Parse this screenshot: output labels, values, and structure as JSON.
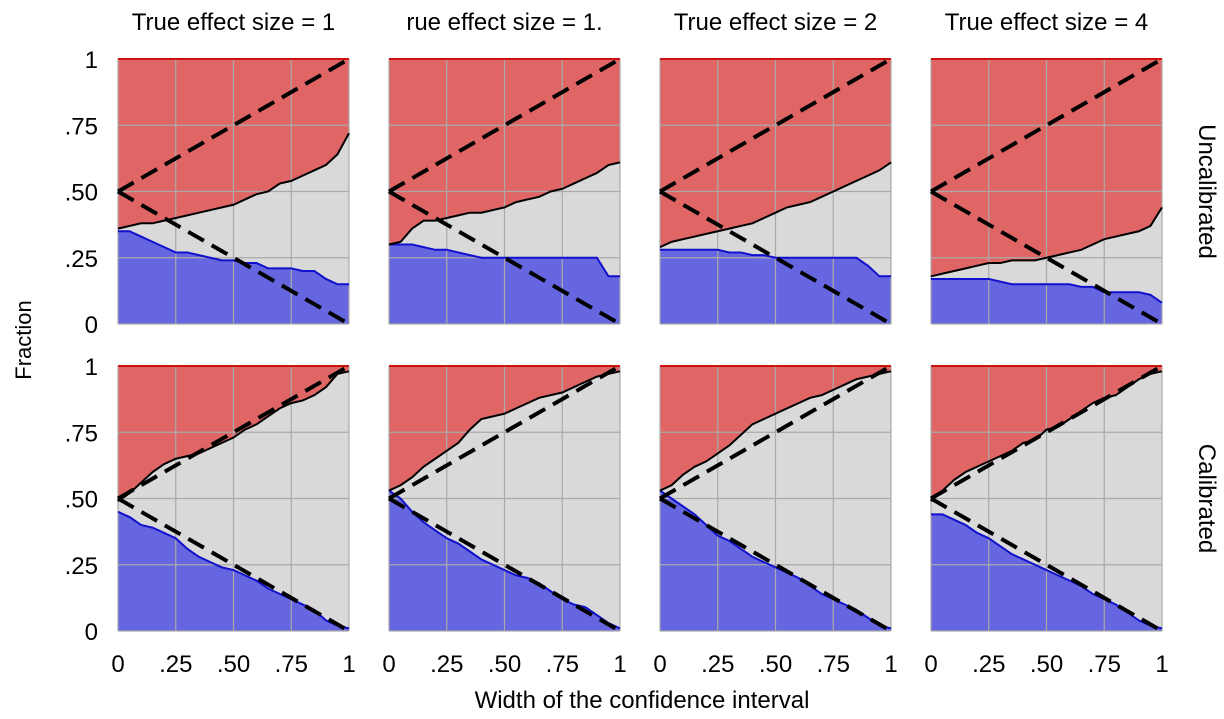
{
  "chart_data": {
    "type": "area",
    "ylabel": "Fraction",
    "xlabel": "Width of the confidence interval",
    "xlim": [
      0,
      1
    ],
    "ylim": [
      0,
      1
    ],
    "x_ticks": [
      "0",
      ".25",
      ".50",
      ".75",
      "1"
    ],
    "x_tick_values": [
      0,
      0.25,
      0.5,
      0.75,
      1
    ],
    "y_ticks": [
      "0",
      ".25",
      ".50",
      ".75",
      "1"
    ],
    "y_tick_values": [
      0,
      0.25,
      0.5,
      0.75,
      1
    ],
    "grid": true,
    "column_titles": [
      "True effect size = 1",
      "rue effect size = 1.",
      "True effect size = 2",
      "True effect size = 4"
    ],
    "row_labels": [
      "Uncalibrated",
      "Calibrated"
    ],
    "colors": {
      "top_fill": "#e06666",
      "top_line": "#cc1111",
      "middle_fill": "#d9d9d9",
      "bottom_fill": "#6666e0",
      "bottom_line": "#1111cc",
      "upper_curve": "#000000",
      "reference_dashed": "#000000",
      "grid": "#aaaaaa"
    },
    "reference_lines": [
      {
        "name": "upper",
        "x": [
          0,
          1
        ],
        "y": [
          0.5,
          1
        ]
      },
      {
        "name": "lower",
        "x": [
          0,
          1
        ],
        "y": [
          0.5,
          0
        ]
      }
    ],
    "panels": [
      {
        "row": "Uncalibrated",
        "column": "True effect size = 1",
        "lower_curve": {
          "x": [
            0,
            0.05,
            0.1,
            0.15,
            0.2,
            0.25,
            0.3,
            0.35,
            0.4,
            0.45,
            0.5,
            0.55,
            0.6,
            0.65,
            0.7,
            0.75,
            0.8,
            0.85,
            0.9,
            0.95,
            1
          ],
          "y": [
            0.35,
            0.35,
            0.33,
            0.31,
            0.29,
            0.27,
            0.27,
            0.26,
            0.25,
            0.24,
            0.24,
            0.23,
            0.23,
            0.21,
            0.21,
            0.21,
            0.2,
            0.2,
            0.17,
            0.15,
            0.15
          ]
        },
        "upper_curve": {
          "x": [
            0,
            0.05,
            0.1,
            0.15,
            0.2,
            0.25,
            0.3,
            0.35,
            0.4,
            0.45,
            0.5,
            0.55,
            0.6,
            0.65,
            0.7,
            0.75,
            0.8,
            0.85,
            0.9,
            0.95,
            1
          ],
          "y": [
            0.36,
            0.37,
            0.38,
            0.38,
            0.39,
            0.4,
            0.41,
            0.42,
            0.43,
            0.44,
            0.45,
            0.47,
            0.49,
            0.5,
            0.53,
            0.54,
            0.56,
            0.58,
            0.6,
            0.64,
            0.72
          ]
        }
      },
      {
        "row": "Uncalibrated",
        "column": "rue effect size = 1.",
        "lower_curve": {
          "x": [
            0,
            0.05,
            0.1,
            0.15,
            0.2,
            0.25,
            0.3,
            0.35,
            0.4,
            0.45,
            0.5,
            0.55,
            0.6,
            0.65,
            0.7,
            0.75,
            0.8,
            0.85,
            0.9,
            0.95,
            1
          ],
          "y": [
            0.3,
            0.3,
            0.3,
            0.29,
            0.28,
            0.28,
            0.27,
            0.26,
            0.25,
            0.25,
            0.25,
            0.25,
            0.25,
            0.25,
            0.25,
            0.25,
            0.25,
            0.25,
            0.25,
            0.18,
            0.18
          ]
        },
        "upper_curve": {
          "x": [
            0,
            0.05,
            0.1,
            0.15,
            0.2,
            0.25,
            0.3,
            0.35,
            0.4,
            0.45,
            0.5,
            0.55,
            0.6,
            0.65,
            0.7,
            0.75,
            0.8,
            0.85,
            0.9,
            0.95,
            1
          ],
          "y": [
            0.3,
            0.31,
            0.36,
            0.39,
            0.39,
            0.4,
            0.41,
            0.42,
            0.42,
            0.43,
            0.44,
            0.46,
            0.47,
            0.48,
            0.5,
            0.51,
            0.53,
            0.55,
            0.57,
            0.6,
            0.61
          ]
        }
      },
      {
        "row": "Uncalibrated",
        "column": "True effect size = 2",
        "lower_curve": {
          "x": [
            0,
            0.05,
            0.1,
            0.15,
            0.2,
            0.25,
            0.3,
            0.35,
            0.4,
            0.45,
            0.5,
            0.55,
            0.6,
            0.65,
            0.7,
            0.75,
            0.8,
            0.85,
            0.9,
            0.95,
            1
          ],
          "y": [
            0.28,
            0.28,
            0.28,
            0.28,
            0.28,
            0.28,
            0.27,
            0.27,
            0.26,
            0.26,
            0.25,
            0.25,
            0.25,
            0.25,
            0.25,
            0.25,
            0.25,
            0.25,
            0.22,
            0.18,
            0.18
          ]
        },
        "upper_curve": {
          "x": [
            0,
            0.05,
            0.1,
            0.15,
            0.2,
            0.25,
            0.3,
            0.35,
            0.4,
            0.45,
            0.5,
            0.55,
            0.6,
            0.65,
            0.7,
            0.75,
            0.8,
            0.85,
            0.9,
            0.95,
            1
          ],
          "y": [
            0.29,
            0.31,
            0.32,
            0.33,
            0.34,
            0.35,
            0.36,
            0.37,
            0.38,
            0.4,
            0.42,
            0.44,
            0.45,
            0.46,
            0.48,
            0.5,
            0.52,
            0.54,
            0.56,
            0.58,
            0.61
          ]
        }
      },
      {
        "row": "Uncalibrated",
        "column": "True effect size = 4",
        "lower_curve": {
          "x": [
            0,
            0.05,
            0.1,
            0.15,
            0.2,
            0.25,
            0.3,
            0.35,
            0.4,
            0.45,
            0.5,
            0.55,
            0.6,
            0.65,
            0.7,
            0.75,
            0.8,
            0.85,
            0.9,
            0.95,
            1
          ],
          "y": [
            0.17,
            0.17,
            0.17,
            0.17,
            0.17,
            0.17,
            0.16,
            0.15,
            0.15,
            0.15,
            0.15,
            0.15,
            0.15,
            0.14,
            0.14,
            0.12,
            0.12,
            0.12,
            0.12,
            0.11,
            0.08
          ]
        },
        "upper_curve": {
          "x": [
            0,
            0.05,
            0.1,
            0.15,
            0.2,
            0.25,
            0.3,
            0.35,
            0.4,
            0.45,
            0.5,
            0.55,
            0.6,
            0.65,
            0.7,
            0.75,
            0.8,
            0.85,
            0.9,
            0.95,
            1
          ],
          "y": [
            0.18,
            0.19,
            0.2,
            0.21,
            0.22,
            0.23,
            0.23,
            0.24,
            0.24,
            0.24,
            0.25,
            0.26,
            0.27,
            0.28,
            0.3,
            0.32,
            0.33,
            0.34,
            0.35,
            0.37,
            0.44
          ]
        }
      },
      {
        "row": "Calibrated",
        "column": "True effect size = 1",
        "lower_curve": {
          "x": [
            0,
            0.05,
            0.1,
            0.15,
            0.2,
            0.25,
            0.3,
            0.35,
            0.4,
            0.45,
            0.5,
            0.55,
            0.6,
            0.65,
            0.7,
            0.75,
            0.8,
            0.85,
            0.9,
            0.95,
            1
          ],
          "y": [
            0.45,
            0.43,
            0.4,
            0.39,
            0.37,
            0.35,
            0.31,
            0.28,
            0.26,
            0.24,
            0.23,
            0.21,
            0.19,
            0.16,
            0.14,
            0.12,
            0.1,
            0.08,
            0.04,
            0.02,
            0.01
          ]
        },
        "upper_curve": {
          "x": [
            0,
            0.05,
            0.1,
            0.15,
            0.2,
            0.25,
            0.3,
            0.35,
            0.4,
            0.45,
            0.5,
            0.55,
            0.6,
            0.65,
            0.7,
            0.75,
            0.8,
            0.85,
            0.9,
            0.95,
            1
          ],
          "y": [
            0.49,
            0.52,
            0.56,
            0.6,
            0.63,
            0.65,
            0.66,
            0.67,
            0.69,
            0.71,
            0.73,
            0.76,
            0.78,
            0.81,
            0.84,
            0.86,
            0.87,
            0.89,
            0.92,
            0.97,
            0.98
          ]
        }
      },
      {
        "row": "Calibrated",
        "column": "rue effect size = 1.",
        "lower_curve": {
          "x": [
            0,
            0.05,
            0.1,
            0.15,
            0.2,
            0.25,
            0.3,
            0.35,
            0.4,
            0.45,
            0.5,
            0.55,
            0.6,
            0.65,
            0.7,
            0.75,
            0.8,
            0.85,
            0.9,
            0.95,
            1
          ],
          "y": [
            0.53,
            0.5,
            0.45,
            0.41,
            0.38,
            0.35,
            0.33,
            0.3,
            0.27,
            0.25,
            0.23,
            0.21,
            0.2,
            0.18,
            0.15,
            0.12,
            0.1,
            0.09,
            0.06,
            0.03,
            0.01
          ]
        },
        "upper_curve": {
          "x": [
            0,
            0.05,
            0.1,
            0.15,
            0.2,
            0.25,
            0.3,
            0.35,
            0.4,
            0.45,
            0.5,
            0.55,
            0.6,
            0.65,
            0.7,
            0.75,
            0.8,
            0.85,
            0.9,
            0.95,
            1
          ],
          "y": [
            0.53,
            0.55,
            0.58,
            0.62,
            0.65,
            0.68,
            0.71,
            0.76,
            0.8,
            0.81,
            0.82,
            0.84,
            0.86,
            0.88,
            0.89,
            0.9,
            0.92,
            0.94,
            0.96,
            0.97,
            0.98
          ]
        }
      },
      {
        "row": "Calibrated",
        "column": "True effect size = 2",
        "lower_curve": {
          "x": [
            0,
            0.05,
            0.1,
            0.15,
            0.2,
            0.25,
            0.3,
            0.35,
            0.4,
            0.45,
            0.5,
            0.55,
            0.6,
            0.65,
            0.7,
            0.75,
            0.8,
            0.85,
            0.9,
            0.95,
            1
          ],
          "y": [
            0.53,
            0.5,
            0.47,
            0.44,
            0.4,
            0.36,
            0.34,
            0.31,
            0.28,
            0.26,
            0.24,
            0.22,
            0.2,
            0.17,
            0.14,
            0.12,
            0.1,
            0.08,
            0.05,
            0.02,
            0.01
          ]
        },
        "upper_curve": {
          "x": [
            0,
            0.05,
            0.1,
            0.15,
            0.2,
            0.25,
            0.3,
            0.35,
            0.4,
            0.45,
            0.5,
            0.55,
            0.6,
            0.65,
            0.7,
            0.75,
            0.8,
            0.85,
            0.9,
            0.95,
            1
          ],
          "y": [
            0.53,
            0.55,
            0.59,
            0.62,
            0.64,
            0.67,
            0.7,
            0.74,
            0.78,
            0.8,
            0.82,
            0.84,
            0.86,
            0.88,
            0.89,
            0.91,
            0.93,
            0.95,
            0.96,
            0.97,
            0.98
          ]
        }
      },
      {
        "row": "Calibrated",
        "column": "True effect size = 4",
        "lower_curve": {
          "x": [
            0,
            0.05,
            0.1,
            0.15,
            0.2,
            0.25,
            0.3,
            0.35,
            0.4,
            0.45,
            0.5,
            0.55,
            0.6,
            0.65,
            0.7,
            0.75,
            0.8,
            0.85,
            0.9,
            0.95,
            1
          ],
          "y": [
            0.44,
            0.44,
            0.42,
            0.4,
            0.37,
            0.35,
            0.32,
            0.29,
            0.27,
            0.25,
            0.23,
            0.21,
            0.19,
            0.17,
            0.14,
            0.12,
            0.1,
            0.07,
            0.04,
            0.02,
            0.01
          ]
        },
        "upper_curve": {
          "x": [
            0,
            0.05,
            0.1,
            0.15,
            0.2,
            0.25,
            0.3,
            0.35,
            0.4,
            0.45,
            0.5,
            0.55,
            0.6,
            0.65,
            0.7,
            0.75,
            0.8,
            0.85,
            0.9,
            0.95,
            1
          ],
          "y": [
            0.49,
            0.53,
            0.57,
            0.6,
            0.62,
            0.64,
            0.66,
            0.68,
            0.71,
            0.72,
            0.76,
            0.77,
            0.8,
            0.83,
            0.86,
            0.88,
            0.89,
            0.92,
            0.95,
            0.97,
            0.98
          ]
        }
      }
    ]
  }
}
